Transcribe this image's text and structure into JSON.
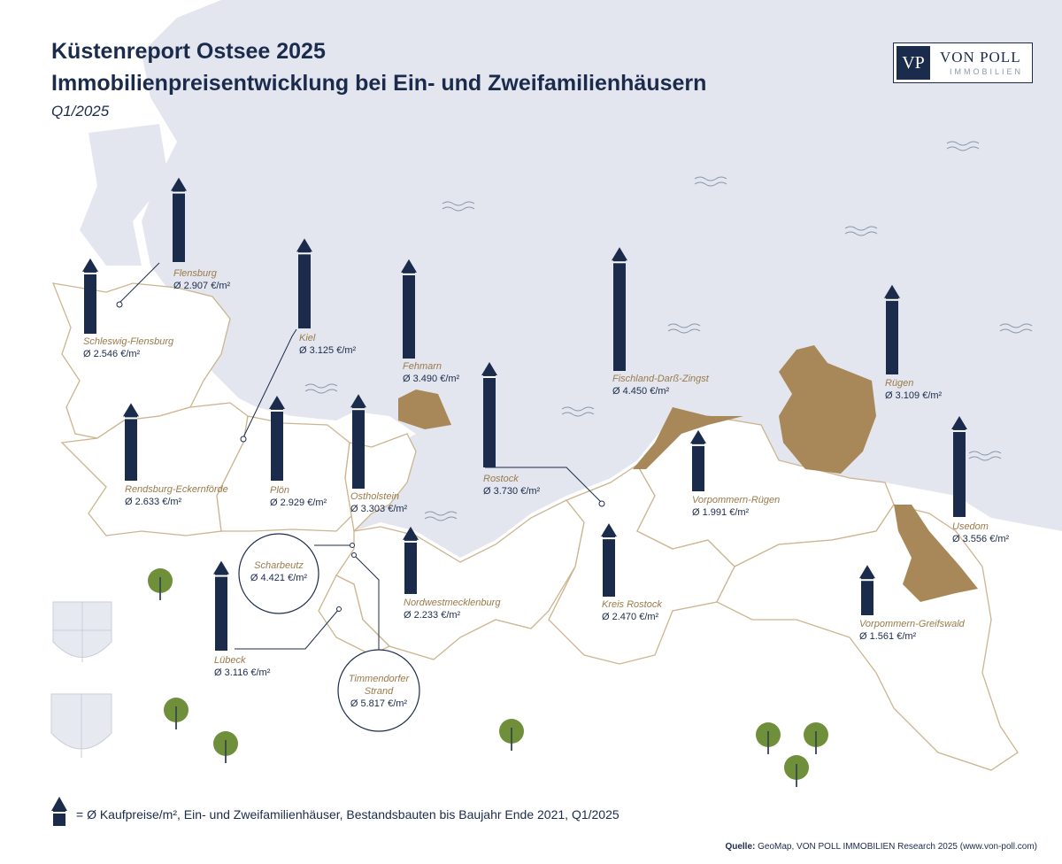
{
  "header": {
    "title": "Küstenreport Ostsee 2025",
    "subtitle": "Immobilienpreisentwicklung bei Ein- und Zweifamilienhäusern",
    "period": "Q1/2025"
  },
  "logo": {
    "initials": "VP",
    "name": "VON POLL",
    "sub": "IMMOBILIEN"
  },
  "colors": {
    "navy": "#1b2b4b",
    "sea": "#e3e6ee",
    "land_outline": "#cdb48e",
    "island": "#a88858",
    "tree": "#6f8f3a"
  },
  "price_unit": "€/m²",
  "regions": [
    {
      "id": "flensburg",
      "name": "Flensburg",
      "price": "Ø 2.907 €/m²",
      "value": 2907
    },
    {
      "id": "schleswig-flensburg",
      "name": "Schleswig-Flensburg",
      "price": "Ø 2.546 €/m²",
      "value": 2546
    },
    {
      "id": "kiel",
      "name": "Kiel",
      "price": "Ø 3.125 €/m²",
      "value": 3125
    },
    {
      "id": "fehmarn",
      "name": "Fehmarn",
      "price": "Ø 3.490 €/m²",
      "value": 3490
    },
    {
      "id": "fischland",
      "name": "Fischland-Darß-Zingst",
      "price": "Ø 4.450 €/m²",
      "value": 4450
    },
    {
      "id": "ruegen",
      "name": "Rügen",
      "price": "Ø 3.109 €/m²",
      "value": 3109
    },
    {
      "id": "rendsburg",
      "name": "Rendsburg-Eckernförde",
      "price": "Ø 2.633 €/m²",
      "value": 2633
    },
    {
      "id": "ploen",
      "name": "Plön",
      "price": "Ø 2.929 €/m²",
      "value": 2929
    },
    {
      "id": "ostholstein",
      "name": "Ostholstein",
      "price": "Ø 3.303 €/m²",
      "value": 3303
    },
    {
      "id": "rostock",
      "name": "Rostock",
      "price": "Ø 3.730 €/m²",
      "value": 3730
    },
    {
      "id": "vorpommern-ruegen",
      "name": "Vorpommern-Rügen",
      "price": "Ø 1.991 €/m²",
      "value": 1991
    },
    {
      "id": "usedom",
      "name": "Usedom",
      "price": "Ø 3.556 €/m²",
      "value": 3556
    },
    {
      "id": "nordwestmecklenburg",
      "name": "Nordwestmecklenburg",
      "price": "Ø 2.233 €/m²",
      "value": 2233
    },
    {
      "id": "kreis-rostock",
      "name": "Kreis Rostock",
      "price": "Ø 2.470 €/m²",
      "value": 2470
    },
    {
      "id": "vorpommern-greifswald",
      "name": "Vorpommern-Greifswald",
      "price": "Ø 1.561 €/m²",
      "value": 1561
    },
    {
      "id": "luebeck",
      "name": "Lübeck",
      "price": "Ø 3.116 €/m²",
      "value": 3116
    }
  ],
  "callouts": [
    {
      "id": "scharbeutz",
      "name": "Scharbeutz",
      "price": "Ø 4.421 €/m²",
      "value": 4421
    },
    {
      "id": "timmendorfer",
      "name_line1": "Timmendorfer",
      "name_line2": "Strand",
      "price": "Ø 5.817 €/m²",
      "value": 5817
    }
  ],
  "legend": "= Ø Kaufpreise/m², Ein- und Zweifamilienhäuser, Bestandsbauten bis Baujahr Ende 2021, Q1/2025",
  "source": {
    "label": "Quelle:",
    "text": " GeoMap, VON POLL IMMOBILIEN Research 2025 (www.von-poll.com)"
  }
}
